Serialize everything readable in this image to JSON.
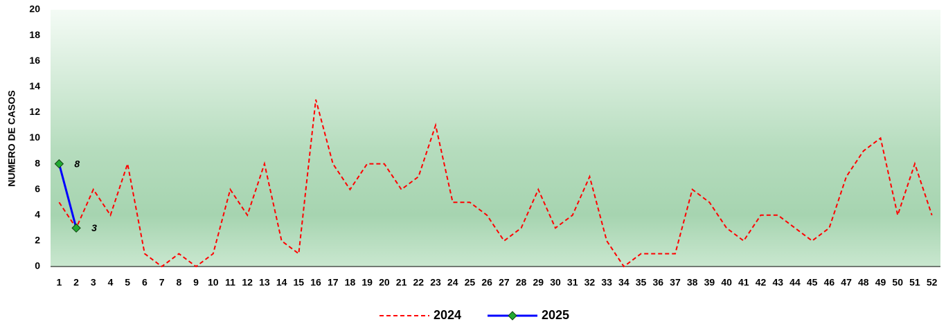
{
  "chart_data": {
    "type": "line",
    "y_label": "NUMERO DE CASOS",
    "categories": [
      1,
      2,
      3,
      4,
      5,
      6,
      7,
      8,
      9,
      10,
      11,
      12,
      13,
      14,
      15,
      16,
      17,
      18,
      19,
      20,
      21,
      22,
      23,
      24,
      25,
      26,
      27,
      28,
      29,
      30,
      31,
      32,
      33,
      34,
      35,
      36,
      37,
      38,
      39,
      40,
      41,
      42,
      43,
      44,
      45,
      46,
      47,
      48,
      49,
      50,
      51,
      52
    ],
    "series": [
      {
        "name": "2024",
        "color": "#ff0000",
        "dashed": true,
        "values": [
          5,
          3,
          6,
          4,
          8,
          1,
          0,
          1,
          0,
          1,
          6,
          4,
          8,
          2,
          1,
          13,
          8,
          6,
          8,
          8,
          6,
          7,
          11,
          5,
          5,
          4,
          2,
          3,
          6,
          3,
          4,
          7,
          2,
          0,
          1,
          1,
          1,
          6,
          5,
          3,
          2,
          4,
          4,
          3,
          2,
          3,
          7,
          9,
          10,
          4,
          8,
          4
        ]
      },
      {
        "name": "2025",
        "color": "#0000ff",
        "dashed": false,
        "marker_color": "#22aa33",
        "data_labels": true,
        "values": [
          8,
          3,
          null,
          null,
          null,
          null,
          null,
          null,
          null,
          null,
          null,
          null,
          null,
          null,
          null,
          null,
          null,
          null,
          null,
          null,
          null,
          null,
          null,
          null,
          null,
          null,
          null,
          null,
          null,
          null,
          null,
          null,
          null,
          null,
          null,
          null,
          null,
          null,
          null,
          null,
          null,
          null,
          null,
          null,
          null,
          null,
          null,
          null,
          null,
          null,
          null,
          null
        ]
      }
    ],
    "ylim": [
      0,
      20
    ],
    "yticks": [
      0,
      2,
      4,
      6,
      8,
      10,
      12,
      14,
      16,
      18,
      20
    ],
    "grid": false,
    "legend": "bottom"
  }
}
